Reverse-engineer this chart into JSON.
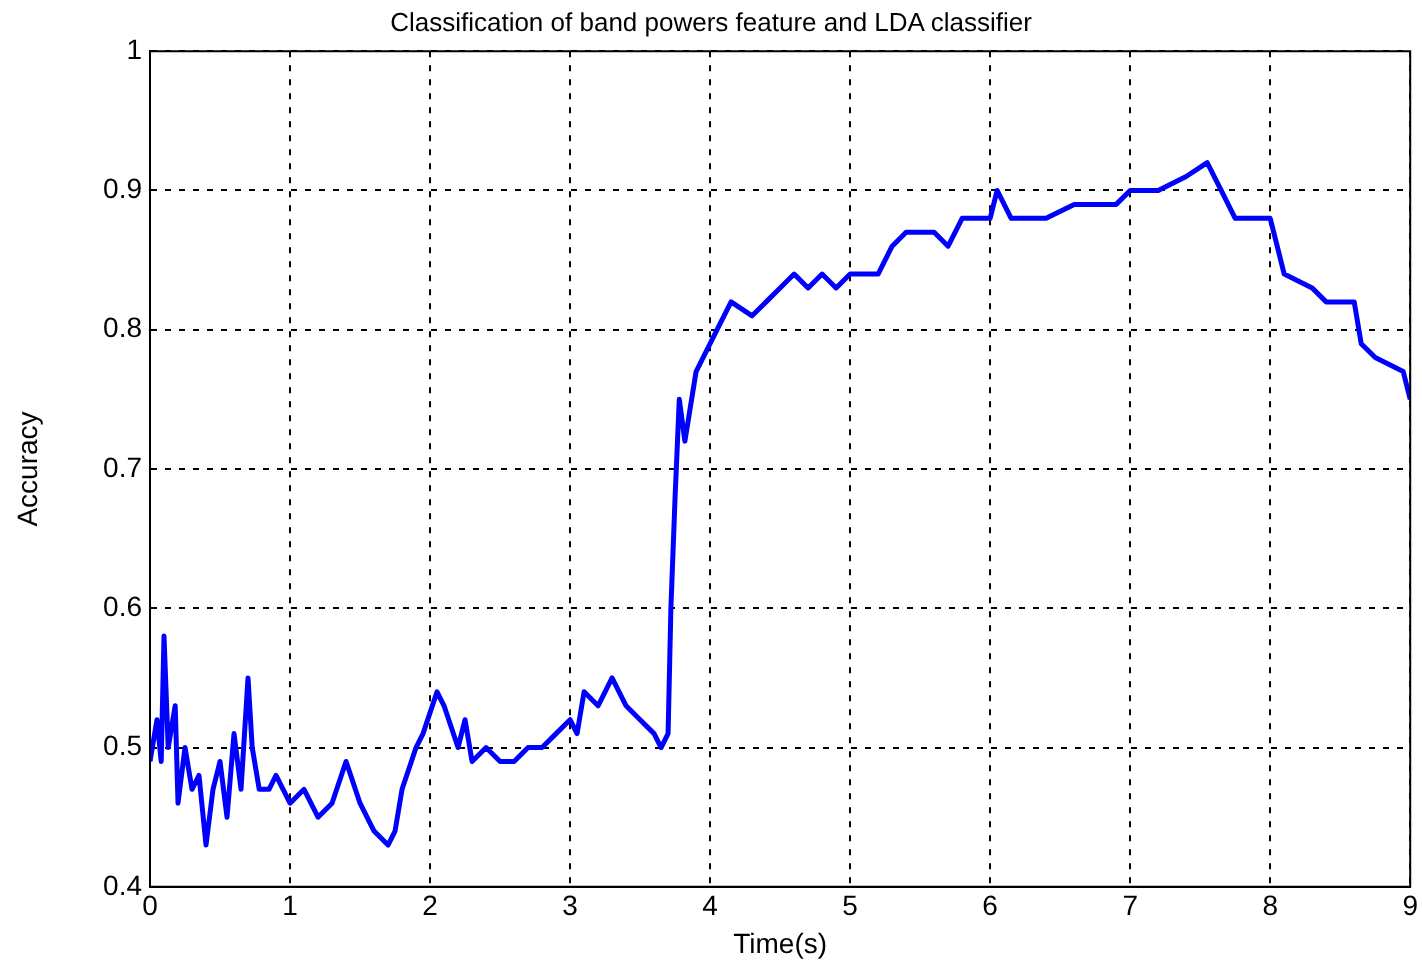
{
  "chart_data": {
    "type": "line",
    "title": "Classification of band powers feature and LDA classifier",
    "xlabel": "Time(s)",
    "ylabel": "Accuracy",
    "x": [
      0,
      0.05,
      0.08,
      0.1,
      0.13,
      0.18,
      0.2,
      0.25,
      0.3,
      0.35,
      0.4,
      0.45,
      0.5,
      0.55,
      0.6,
      0.65,
      0.7,
      0.73,
      0.78,
      0.85,
      0.9,
      1.0,
      1.1,
      1.2,
      1.3,
      1.4,
      1.5,
      1.6,
      1.7,
      1.75,
      1.8,
      1.9,
      1.95,
      2.05,
      2.1,
      2.2,
      2.25,
      2.3,
      2.4,
      2.5,
      2.6,
      2.7,
      2.8,
      2.9,
      3.0,
      3.05,
      3.1,
      3.2,
      3.3,
      3.4,
      3.5,
      3.6,
      3.65,
      3.7,
      3.72,
      3.75,
      3.78,
      3.82,
      3.9,
      4.0,
      4.05,
      4.15,
      4.3,
      4.4,
      4.5,
      4.6,
      4.7,
      4.8,
      4.9,
      5.0,
      5.2,
      5.3,
      5.4,
      5.5,
      5.6,
      5.7,
      5.8,
      6.0,
      6.05,
      6.15,
      6.4,
      6.6,
      6.9,
      7.0,
      7.2,
      7.4,
      7.55,
      7.65,
      7.75,
      8.0,
      8.05,
      8.1,
      8.3,
      8.4,
      8.6,
      8.65,
      8.75,
      8.95,
      9.0
    ],
    "series": [
      {
        "color": "#0000ff",
        "values": [
          0.49,
          0.52,
          0.49,
          0.58,
          0.5,
          0.53,
          0.46,
          0.5,
          0.47,
          0.48,
          0.43,
          0.47,
          0.49,
          0.45,
          0.51,
          0.47,
          0.55,
          0.5,
          0.47,
          0.47,
          0.48,
          0.46,
          0.47,
          0.45,
          0.46,
          0.49,
          0.46,
          0.44,
          0.43,
          0.44,
          0.47,
          0.5,
          0.51,
          0.54,
          0.53,
          0.5,
          0.52,
          0.49,
          0.5,
          0.49,
          0.49,
          0.5,
          0.5,
          0.51,
          0.52,
          0.51,
          0.54,
          0.53,
          0.55,
          0.53,
          0.52,
          0.51,
          0.5,
          0.51,
          0.6,
          0.68,
          0.75,
          0.72,
          0.77,
          0.79,
          0.8,
          0.82,
          0.81,
          0.82,
          0.83,
          0.84,
          0.83,
          0.84,
          0.83,
          0.84,
          0.84,
          0.86,
          0.87,
          0.87,
          0.87,
          0.86,
          0.88,
          0.88,
          0.9,
          0.88,
          0.88,
          0.89,
          0.89,
          0.9,
          0.9,
          0.91,
          0.92,
          0.9,
          0.88,
          0.88,
          0.86,
          0.84,
          0.83,
          0.82,
          0.82,
          0.79,
          0.78,
          0.77,
          0.75
        ]
      }
    ],
    "xlim": [
      0,
      9
    ],
    "xticks": [
      0,
      1,
      2,
      3,
      4,
      5,
      6,
      7,
      8,
      9
    ],
    "ylim": [
      0.4,
      1
    ],
    "yticks": [
      0.4,
      0.5,
      0.6,
      0.7,
      0.8,
      0.9,
      1
    ],
    "grid": true,
    "legend": false,
    "marker": "none",
    "line_style": "solid"
  }
}
